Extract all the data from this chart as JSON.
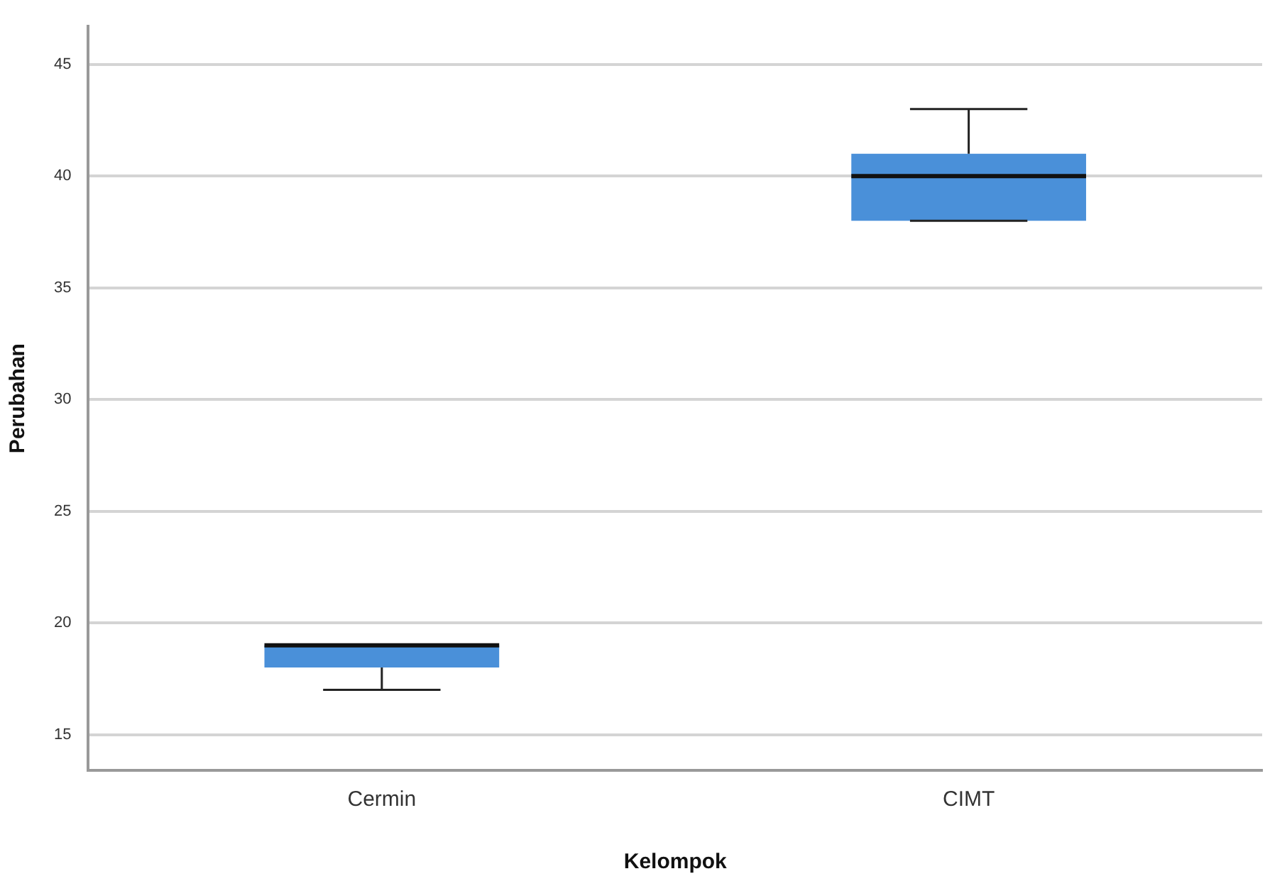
{
  "chart_data": {
    "type": "box",
    "xlabel": "Kelompok",
    "ylabel": "Perubahan",
    "categories": [
      "Cermin",
      "CIMT"
    ],
    "color": "#4a90d9",
    "boxes": [
      {
        "low": 17,
        "q1": 18,
        "median": 19,
        "q3": 19,
        "high": 19
      },
      {
        "low": 38,
        "q1": 38,
        "median": 40,
        "q3": 41,
        "high": 43
      }
    ],
    "ylim": [
      13.4,
      46.7
    ],
    "yticks": [
      15,
      20,
      25,
      30,
      35,
      40,
      45
    ],
    "grid": "y",
    "legend": false
  }
}
